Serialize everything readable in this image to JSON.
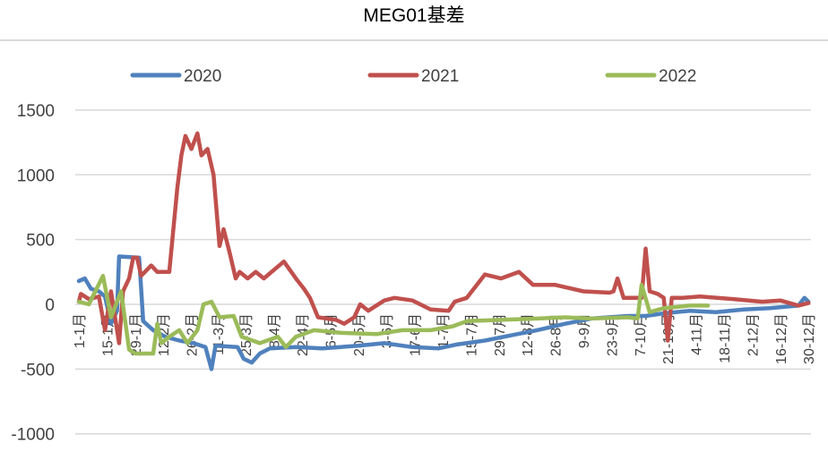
{
  "chart_data": {
    "type": "line",
    "title": "MEG01基差",
    "xlabel": "",
    "ylabel": "",
    "ylim": [
      -1000,
      1500
    ],
    "yticks": [
      1500,
      1000,
      500,
      0,
      -500,
      -1000
    ],
    "xticks": [
      "1-1月",
      "15-1月",
      "29-1月",
      "12-2月",
      "26-2月",
      "11-3月",
      "25-3月",
      "8-4月",
      "22-4月",
      "6-5月",
      "20-5月",
      "3-6月",
      "17-6月",
      "1-7月",
      "15-7月",
      "29-7月",
      "12-8月",
      "26-8月",
      "9-9月",
      "23-9月",
      "7-10月",
      "21-10月",
      "4-11月",
      "18-11月",
      "2-12月",
      "16-12月",
      "30-12月"
    ],
    "grid": true,
    "legend_position": "top",
    "series": [
      {
        "name": "2020",
        "color": "#4F81BD",
        "points": [
          [
            "1-1",
            180
          ],
          [
            "4-1",
            200
          ],
          [
            "7-1",
            120
          ],
          [
            "11-1",
            100
          ],
          [
            "14-1",
            60
          ],
          [
            "17-1",
            -150
          ],
          [
            "20-1",
            -50
          ],
          [
            "21-1",
            370
          ],
          [
            "31-1",
            360
          ],
          [
            "2-2",
            -130
          ],
          [
            "7-2",
            -200
          ],
          [
            "13-2",
            -250
          ],
          [
            "20-2",
            -280
          ],
          [
            "27-2",
            -300
          ],
          [
            "5-3",
            -330
          ],
          [
            "8-3",
            -500
          ],
          [
            "10-3",
            -320
          ],
          [
            "21-3",
            -330
          ],
          [
            "24-3",
            -420
          ],
          [
            "28-3",
            -450
          ],
          [
            "1-4",
            -380
          ],
          [
            "6-4",
            -340
          ],
          [
            "19-4",
            -330
          ],
          [
            "2-5",
            -340
          ],
          [
            "20-5",
            -320
          ],
          [
            "2-6",
            -300
          ],
          [
            "16-6",
            -330
          ],
          [
            "29-6",
            -340
          ],
          [
            "8-7",
            -310
          ],
          [
            "22-7",
            -280
          ],
          [
            "4-8",
            -240
          ],
          [
            "17-8",
            -200
          ],
          [
            "31-8",
            -150
          ],
          [
            "13-9",
            -110
          ],
          [
            "1-10",
            -90
          ],
          [
            "10-10",
            -90
          ],
          [
            "19-10",
            -70
          ],
          [
            "1-11",
            -50
          ],
          [
            "14-11",
            -60
          ],
          [
            "28-11",
            -40
          ],
          [
            "11-12",
            -30
          ],
          [
            "25-12",
            -10
          ],
          [
            "28-12",
            50
          ],
          [
            "30-12",
            20
          ]
        ]
      },
      {
        "name": "2021",
        "color": "#C0504D",
        "points": [
          [
            "1-1",
            20
          ],
          [
            "2-1",
            80
          ],
          [
            "6-1",
            40
          ],
          [
            "11-1",
            60
          ],
          [
            "14-1",
            -200
          ],
          [
            "17-1",
            100
          ],
          [
            "21-1",
            -300
          ],
          [
            "23-1",
            100
          ],
          [
            "26-1",
            200
          ],
          [
            "28-1",
            360
          ],
          [
            "30-1",
            360
          ],
          [
            "1-2",
            220
          ],
          [
            "6-2",
            300
          ],
          [
            "9-2",
            250
          ],
          [
            "15-2",
            250
          ],
          [
            "19-2",
            900
          ],
          [
            "21-2",
            1150
          ],
          [
            "23-2",
            1300
          ],
          [
            "26-2",
            1200
          ],
          [
            "1-3",
            1320
          ],
          [
            "3-3",
            1150
          ],
          [
            "6-3",
            1200
          ],
          [
            "9-3",
            1000
          ],
          [
            "12-3",
            450
          ],
          [
            "14-3",
            580
          ],
          [
            "17-3",
            400
          ],
          [
            "20-3",
            200
          ],
          [
            "22-3",
            250
          ],
          [
            "26-3",
            200
          ],
          [
            "30-3",
            250
          ],
          [
            "3-4",
            200
          ],
          [
            "13-4",
            330
          ],
          [
            "19-4",
            200
          ],
          [
            "23-4",
            120
          ],
          [
            "26-4",
            50
          ],
          [
            "30-4",
            -100
          ],
          [
            "9-5",
            -120
          ],
          [
            "13-5",
            -150
          ],
          [
            "18-5",
            -100
          ],
          [
            "21-5",
            0
          ],
          [
            "25-5",
            -50
          ],
          [
            "2-6",
            30
          ],
          [
            "7-6",
            50
          ],
          [
            "16-6",
            30
          ],
          [
            "25-6",
            -40
          ],
          [
            "4-7",
            -50
          ],
          [
            "7-7",
            20
          ],
          [
            "13-7",
            50
          ],
          [
            "22-7",
            230
          ],
          [
            "30-7",
            200
          ],
          [
            "8-8",
            250
          ],
          [
            "15-8",
            150
          ],
          [
            "26-8",
            150
          ],
          [
            "9-9",
            100
          ],
          [
            "22-9",
            90
          ],
          [
            "24-9",
            100
          ],
          [
            "26-9",
            200
          ],
          [
            "29-9",
            50
          ],
          [
            "8-10",
            50
          ],
          [
            "10-10",
            430
          ],
          [
            "12-10",
            100
          ],
          [
            "16-10",
            80
          ],
          [
            "19-10",
            50
          ],
          [
            "21-10",
            -280
          ],
          [
            "23-10",
            50
          ],
          [
            "28-10",
            50
          ],
          [
            "6-11",
            60
          ],
          [
            "23-11",
            40
          ],
          [
            "7-12",
            20
          ],
          [
            "16-12",
            30
          ],
          [
            "25-12",
            -10
          ],
          [
            "30-12",
            10
          ]
        ]
      },
      {
        "name": "2022",
        "color": "#9BBB59",
        "points": [
          [
            "1-1",
            20
          ],
          [
            "6-1",
            0
          ],
          [
            "13-1",
            220
          ],
          [
            "17-1",
            -100
          ],
          [
            "22-1",
            100
          ],
          [
            "26-1",
            -350
          ],
          [
            "29-1",
            -380
          ],
          [
            "7-2",
            -380
          ],
          [
            "9-2",
            -150
          ],
          [
            "11-2",
            -300
          ],
          [
            "15-2",
            -250
          ],
          [
            "20-2",
            -200
          ],
          [
            "24-2",
            -300
          ],
          [
            "1-3",
            -200
          ],
          [
            "4-3",
            0
          ],
          [
            "8-3",
            20
          ],
          [
            "12-3",
            -100
          ],
          [
            "19-3",
            -90
          ],
          [
            "23-3",
            -250
          ],
          [
            "1-4",
            -300
          ],
          [
            "10-4",
            -250
          ],
          [
            "14-4",
            -330
          ],
          [
            "19-4",
            -250
          ],
          [
            "28-4",
            -200
          ],
          [
            "11-5",
            -220
          ],
          [
            "29-5",
            -230
          ],
          [
            "11-6",
            -200
          ],
          [
            "25-6",
            -200
          ],
          [
            "6-7",
            -170
          ],
          [
            "13-7",
            -130
          ],
          [
            "30-7",
            -120
          ],
          [
            "17-8",
            -110
          ],
          [
            "31-8",
            -100
          ],
          [
            "13-9",
            -110
          ],
          [
            "1-10",
            -100
          ],
          [
            "6-10",
            -110
          ],
          [
            "8-10",
            150
          ],
          [
            "12-10",
            -60
          ],
          [
            "19-10",
            -30
          ],
          [
            "1-11",
            -10
          ],
          [
            "10-11",
            -10
          ]
        ]
      }
    ]
  }
}
